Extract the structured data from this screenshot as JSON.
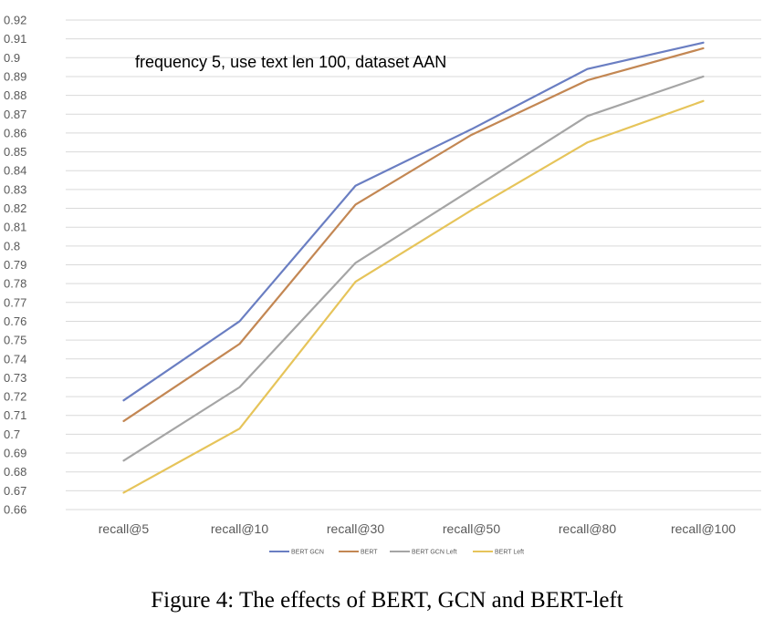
{
  "chart_data": {
    "type": "line",
    "annotation": "frequency 5, use text len 100, dataset AAN",
    "categories": [
      "recall@5",
      "recall@10",
      "recall@30",
      "recall@50",
      "recall@80",
      "recall@100"
    ],
    "ylim": [
      0.66,
      0.92
    ],
    "yticks": [
      "0.66",
      "0.67",
      "0.68",
      "0.69",
      "0.7",
      "0.71",
      "0.72",
      "0.73",
      "0.74",
      "0.75",
      "0.76",
      "0.77",
      "0.78",
      "0.79",
      "0.8",
      "0.81",
      "0.82",
      "0.83",
      "0.84",
      "0.85",
      "0.86",
      "0.87",
      "0.88",
      "0.89",
      "0.9",
      "0.91",
      "0.92"
    ],
    "grid": true,
    "legend_position": "bottom-center",
    "series": [
      {
        "name": "BERT GCN",
        "color": "#6a7ec2",
        "values": [
          0.718,
          0.76,
          0.832,
          0.862,
          0.894,
          0.908
        ]
      },
      {
        "name": "BERT",
        "color": "#c38753",
        "values": [
          0.707,
          0.748,
          0.822,
          0.859,
          0.888,
          0.905
        ]
      },
      {
        "name": "BERT GCN Left",
        "color": "#a5a5a5",
        "values": [
          0.686,
          0.725,
          0.791,
          0.83,
          0.869,
          0.89
        ]
      },
      {
        "name": "BERT Left",
        "color": "#e6c45a",
        "values": [
          0.669,
          0.703,
          0.781,
          0.819,
          0.855,
          0.877
        ]
      }
    ]
  },
  "caption": "Figure 4: The effects of BERT, GCN and BERT-left"
}
